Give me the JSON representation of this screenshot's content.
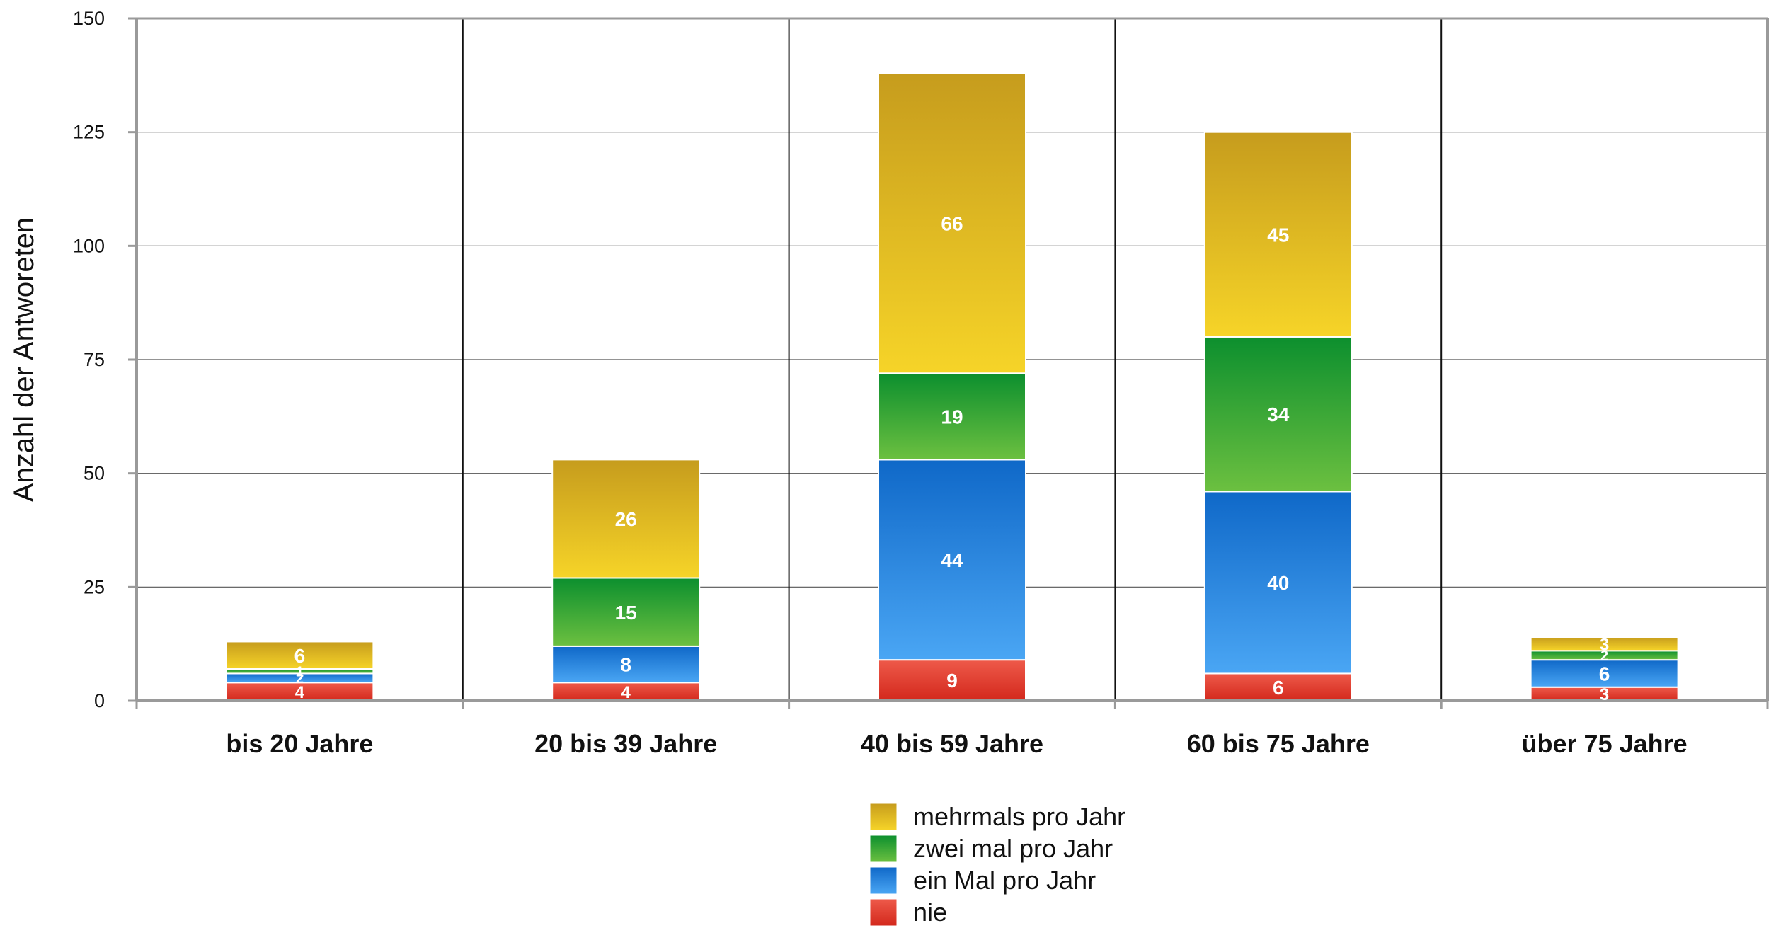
{
  "chart_data": {
    "type": "bar",
    "stacked": true,
    "title": "",
    "xlabel": "",
    "ylabel": "Anzahl der Antworeten",
    "ylim": [
      0,
      150
    ],
    "yticks": [
      "0",
      "25",
      "50",
      "75",
      "100",
      "125",
      "150"
    ],
    "grid": true,
    "legend_position": "bottom",
    "categories": [
      "bis 20 Jahre",
      "20 bis 39 Jahre",
      "40 bis 59 Jahre",
      "60 bis 75 Jahre",
      "über 75 Jahre"
    ],
    "series": [
      {
        "name": "nie",
        "values": [
          4,
          4,
          9,
          6,
          3
        ],
        "labels": [
          "4",
          "4",
          "9",
          "6",
          "3"
        ],
        "color_top": "#ee5a4a",
        "color_bottom": "#d3281c"
      },
      {
        "name": "ein Mal pro Jahr",
        "values": [
          2,
          8,
          44,
          40,
          6
        ],
        "labels": [
          "2",
          "8",
          "44",
          "40",
          "6"
        ],
        "color_top": "#0f68c8",
        "color_bottom": "#4aa6f4"
      },
      {
        "name": "zwei mal pro Jahr",
        "values": [
          1,
          15,
          19,
          34,
          2
        ],
        "labels": [
          "1",
          "15",
          "19",
          "34",
          "2"
        ],
        "color_top": "#0c8f2e",
        "color_bottom": "#6cc040"
      },
      {
        "name": "mehrmals pro Jahr",
        "values": [
          6,
          26,
          66,
          45,
          3
        ],
        "labels": [
          "6",
          "26",
          "66",
          "45",
          "3"
        ],
        "color_top": "#c69c1d",
        "color_bottom": "#f6d428"
      }
    ]
  }
}
